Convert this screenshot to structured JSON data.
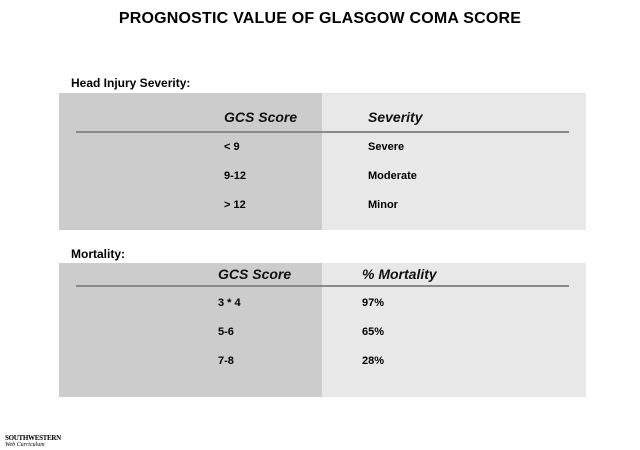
{
  "title": "PROGNOSTIC VALUE OF GLASGOW COMA SCORE",
  "severity_section": {
    "label": "Head Injury Severity:",
    "headers": [
      "GCS Score",
      "Severity"
    ],
    "rows": [
      [
        "< 9",
        "Severe"
      ],
      [
        "9-12",
        "Moderate"
      ],
      [
        "> 12",
        "Minor"
      ]
    ]
  },
  "mortality_section": {
    "label": "Mortality:",
    "headers": [
      "GCS Score",
      "% Mortality"
    ],
    "rows": [
      [
        "3 * 4",
        "97%"
      ],
      [
        "5-6",
        "65%"
      ],
      [
        "7-8",
        "28%"
      ]
    ]
  },
  "logo": {
    "line1": "SOUTHWESTERN",
    "line2": "Web Curriculum"
  },
  "colors": {
    "left_column": "#cccccc",
    "right_column": "#e8e8e8",
    "divider": "#8a8a8a"
  }
}
